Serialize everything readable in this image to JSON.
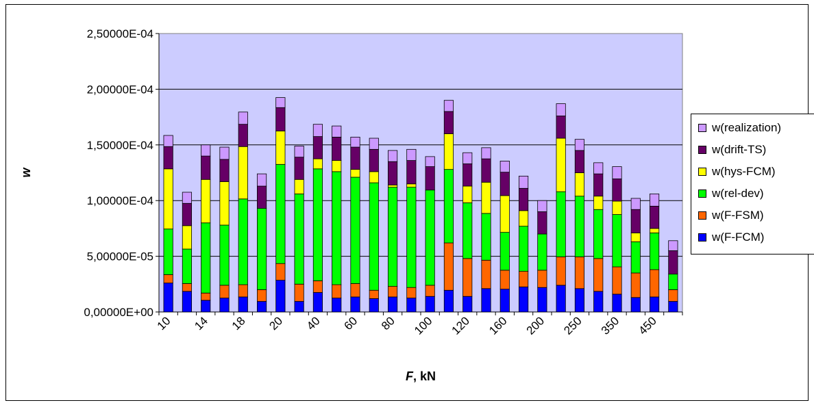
{
  "chart_data": {
    "type": "bar",
    "stacked": true,
    "xlabel": "F, kN",
    "ylabel": "w",
    "ylim": [
      0,
      0.00025
    ],
    "yticks": [
      "0,00000E+00",
      "5,00000E-05",
      "1,00000E-04",
      "1,50000E-04",
      "2,00000E-04",
      "2,50000E-04"
    ],
    "grid": true,
    "legend_position": "right",
    "categories": [
      "10",
      "",
      "14",
      "",
      "18",
      "",
      "20",
      "",
      "40",
      "",
      "60",
      "",
      "80",
      "",
      "100",
      "",
      "120",
      "",
      "160",
      "",
      "200",
      "",
      "250",
      "",
      "350",
      "",
      "450",
      ""
    ],
    "series": [
      {
        "name": "w(F-FCM)",
        "color": "#0000ff",
        "values": [
          2.6e-05,
          1.85e-05,
          1.05e-05,
          1.25e-05,
          1.35e-05,
          9.5e-06,
          2.85e-05,
          9.5e-06,
          1.75e-05,
          1.25e-05,
          1.35e-05,
          1.2e-05,
          1.35e-05,
          1.25e-05,
          1.4e-05,
          1.95e-05,
          1.4e-05,
          2.1e-05,
          2.05e-05,
          2.25e-05,
          2.2e-05,
          2.4e-05,
          2.1e-05,
          1.85e-05,
          1.6e-05,
          1.3e-05,
          1.35e-05,
          9.5e-06
        ]
      },
      {
        "name": "w(F-FSM)",
        "color": "#ff6600",
        "values": [
          7.5e-06,
          7e-06,
          6.5e-06,
          1.15e-05,
          1.1e-05,
          1.05e-05,
          1.5e-05,
          1.55e-05,
          1.05e-05,
          1.2e-05,
          1.2e-05,
          7.5e-06,
          9.5e-06,
          9.5e-06,
          1e-05,
          4.25e-05,
          3.4e-05,
          2.55e-05,
          1.7e-05,
          1.4e-05,
          1.55e-05,
          2.55e-05,
          2.85e-05,
          2.95e-05,
          2.45e-05,
          2.2e-05,
          2.45e-05,
          1.05e-05
        ]
      },
      {
        "name": "w(rel-dev)",
        "color": "#00ff00",
        "values": [
          4.1e-05,
          3.1e-05,
          6.3e-05,
          5.4e-05,
          7.7e-05,
          7.3e-05,
          8.9e-05,
          8.1e-05,
          0.0001005,
          0.0001015,
          9.55e-05,
          9.65e-05,
          8.9e-05,
          9e-05,
          8.55e-05,
          6.6e-05,
          5e-05,
          4.2e-05,
          3.4e-05,
          4.05e-05,
          3.25e-05,
          5.85e-05,
          5.45e-05,
          4.4e-05,
          4.7e-05,
          2.8e-05,
          3.3e-05,
          1.4e-05
        ]
      },
      {
        "name": "w(hys-FCM)",
        "color": "#ffff00",
        "values": [
          5.4e-05,
          2.1e-05,
          3.9e-05,
          3.9e-05,
          4.7e-05,
          0.0,
          3e-05,
          1.3e-05,
          9e-06,
          1e-05,
          7e-06,
          1e-05,
          2e-06,
          3e-06,
          0.0,
          3.2e-05,
          1.5e-05,
          2.8e-05,
          3.3e-05,
          1.4e-05,
          0.0,
          4.8e-05,
          2.1e-05,
          1.2e-05,
          1.2e-05,
          8e-06,
          4e-06,
          0.0
        ]
      },
      {
        "name": "w(drift-TS)",
        "color": "#660066",
        "values": [
          2e-05,
          2e-05,
          2.1e-05,
          2e-05,
          2e-05,
          2e-05,
          2.1e-05,
          2e-05,
          2e-05,
          2.1e-05,
          2e-05,
          2e-05,
          2.1e-05,
          2.1e-05,
          2.1e-05,
          2e-05,
          2e-05,
          2.1e-05,
          2.1e-05,
          2e-05,
          2e-05,
          2e-05,
          2e-05,
          2e-05,
          2e-05,
          2.1e-05,
          2e-05,
          2.1e-05
        ]
      },
      {
        "name": "w(realization)",
        "color": "#cc99ff",
        "values": [
          1e-05,
          1e-05,
          1e-05,
          1.1e-05,
          1.1e-05,
          1.1e-05,
          9e-06,
          1e-05,
          1.1e-05,
          1e-05,
          9e-06,
          1e-05,
          1e-05,
          1e-05,
          9e-06,
          1e-05,
          1e-05,
          1e-05,
          1e-05,
          1.1e-05,
          1e-05,
          1.1e-05,
          1e-05,
          1e-05,
          1.1e-05,
          1e-05,
          1.1e-05,
          9e-06
        ]
      }
    ]
  }
}
